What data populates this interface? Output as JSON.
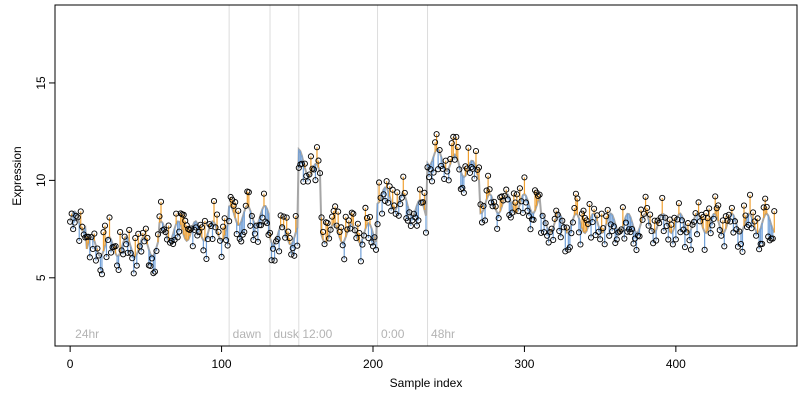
{
  "chart_data": {
    "type": "scatter",
    "title": "",
    "xlabel": "Sample index",
    "ylabel": "Expression",
    "xlim": [
      -10,
      480
    ],
    "ylim": [
      1.5,
      19.0
    ],
    "x_ticks": [
      0,
      100,
      200,
      300,
      400
    ],
    "y_ticks": [
      5,
      10,
      15
    ],
    "grid": false,
    "legend": "none",
    "colors": {
      "points_stroke": "#000000",
      "fitted_line": "#a6a6a6",
      "residual_positive": "#f0a030",
      "residual_negative": "#6f9fd8",
      "separator": "#dddddd",
      "annotation_text": "#b3b3b3",
      "axis": "#000000"
    },
    "separators": [
      105,
      132,
      151,
      203,
      236
    ],
    "annotations": [
      {
        "text": "24hr",
        "x": 2
      },
      {
        "text": "dawn",
        "x": 106
      },
      {
        "text": "dusk",
        "x": 133
      },
      {
        "text": "12:00",
        "x": 152
      },
      {
        "text": "0:00",
        "x": 204
      },
      {
        "text": "48hr",
        "x": 237
      }
    ],
    "segments": [
      {
        "x_start": 0,
        "x_end": 10,
        "level": 7.9
      },
      {
        "x_start": 11,
        "x_end": 58,
        "level": 6.6
      },
      {
        "x_start": 59,
        "x_end": 104,
        "level": 7.4
      },
      {
        "x_start": 105,
        "x_end": 131,
        "level": 8.2
      },
      {
        "x_start": 132,
        "x_end": 150,
        "level": 7.2
      },
      {
        "x_start": 151,
        "x_end": 165,
        "level": 10.6
      },
      {
        "x_start": 166,
        "x_end": 202,
        "level": 7.3
      },
      {
        "x_start": 203,
        "x_end": 235,
        "level": 8.8
      },
      {
        "x_start": 236,
        "x_end": 270,
        "level": 10.8
      },
      {
        "x_start": 271,
        "x_end": 310,
        "level": 8.8
      },
      {
        "x_start": 311,
        "x_end": 465,
        "level": 7.8
      }
    ],
    "noise_seed": 7,
    "noise_amplitude": 1.1,
    "y_floor": 4.9,
    "y_ceiling": 12.4
  }
}
